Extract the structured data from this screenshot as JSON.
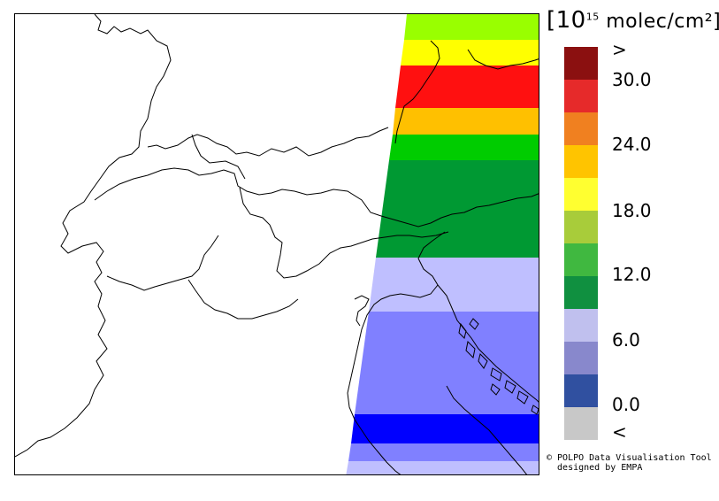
{
  "legend": {
    "unit_prefix": "[10",
    "unit_exponent": "15",
    "unit_suffix": " molec/cm²]",
    "colors": [
      "#8b1010",
      "#e62a2a",
      "#f08020",
      "#ffc400",
      "#ffff30",
      "#a8cc3a",
      "#40b840",
      "#109040",
      "#c0c0ee",
      "#8888cc",
      "#3050a0",
      "#c8c8c8"
    ],
    "color_names": [
      ">30.0",
      "27.0-30.0",
      "24.0-27.0",
      "21.0-24.0",
      "18.0-21.0",
      "15.0-18.0",
      "12.0-15.0",
      "9.0-12.0",
      "6.0-9.0",
      "3.0-6.0",
      "0.0-3.0",
      "<0.0"
    ],
    "ticks": [
      {
        "label": ">",
        "id": "gt"
      },
      {
        "label": "30.0",
        "id": "30"
      },
      {
        "label": "24.0",
        "id": "24"
      },
      {
        "label": "18.0",
        "id": "18"
      },
      {
        "label": "12.0",
        "id": "12"
      },
      {
        "label": "6.0",
        "id": "6"
      },
      {
        "label": "0.0",
        "id": "0"
      },
      {
        "label": "<",
        "id": "lt"
      }
    ]
  },
  "credit": {
    "line1": "© POLPO Data Visualisation Tool",
    "line2": "  designed by EMPA"
  }
}
